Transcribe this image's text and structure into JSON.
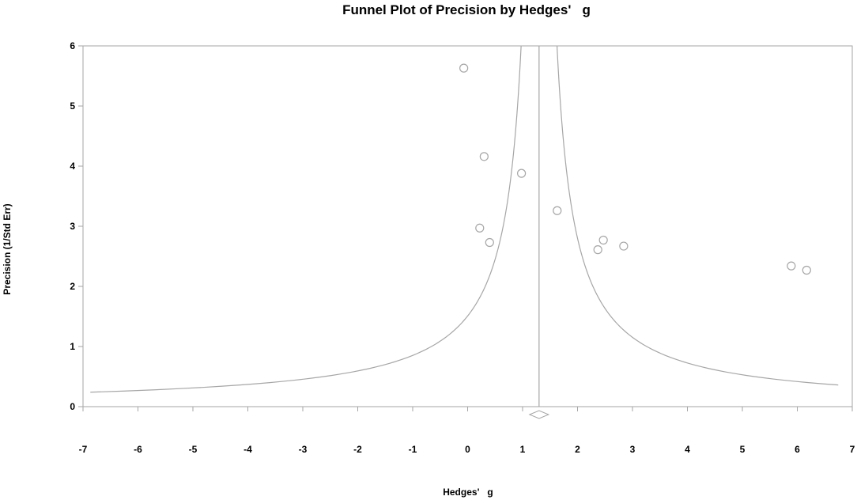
{
  "chart_data": {
    "type": "scatter",
    "title": "Funnel Plot of Precision by Hedges'   g",
    "xlabel": "Hedges'   g",
    "ylabel": "Precision (1/Std Err)",
    "xlim": [
      -7,
      7
    ],
    "ylim": [
      0,
      6
    ],
    "x_ticks": [
      "-7",
      "-6",
      "-5",
      "-4",
      "-3",
      "-2",
      "-1",
      "0",
      "1",
      "2",
      "3",
      "4",
      "5",
      "6",
      "7"
    ],
    "y_ticks": [
      "0",
      "1",
      "2",
      "3",
      "4",
      "5",
      "6"
    ],
    "grid": false,
    "legend": "none",
    "pooled_estimate": 1.3,
    "points": [
      {
        "x": -0.07,
        "y": 5.63
      },
      {
        "x": 0.3,
        "y": 4.16
      },
      {
        "x": 0.98,
        "y": 3.88
      },
      {
        "x": 0.22,
        "y": 2.97
      },
      {
        "x": 0.4,
        "y": 2.73
      },
      {
        "x": 1.63,
        "y": 3.26
      },
      {
        "x": 2.47,
        "y": 2.77
      },
      {
        "x": 2.37,
        "y": 2.61
      },
      {
        "x": 2.84,
        "y": 2.67
      },
      {
        "x": 5.89,
        "y": 2.34
      },
      {
        "x": 6.17,
        "y": 2.27
      }
    ],
    "colors": {
      "marker": "#a6a6a6",
      "funnel": "#a6a6a6",
      "axis": "#a6a6a6",
      "text": "#000000"
    }
  }
}
